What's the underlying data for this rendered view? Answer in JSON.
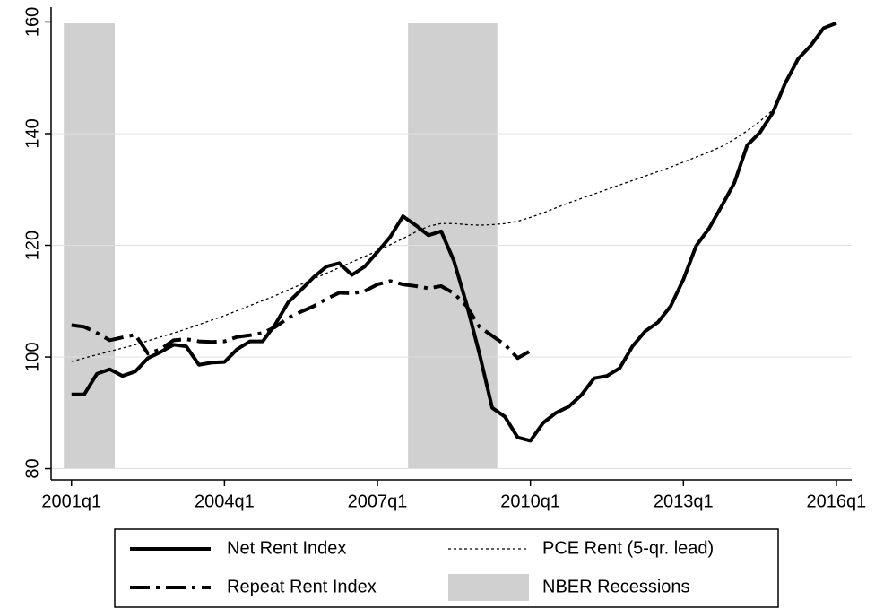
{
  "chart_data": {
    "type": "line",
    "x": [
      2001,
      2001.25,
      2001.5,
      2001.75,
      2002,
      2002.25,
      2002.5,
      2002.75,
      2003,
      2003.25,
      2003.5,
      2003.75,
      2004,
      2004.25,
      2004.5,
      2004.75,
      2005,
      2005.25,
      2005.5,
      2005.75,
      2006,
      2006.25,
      2006.5,
      2006.75,
      2007,
      2007.25,
      2007.5,
      2007.75,
      2008,
      2008.25,
      2008.5,
      2008.75,
      2009,
      2009.25,
      2009.5,
      2009.75,
      2010,
      2010.25,
      2010.5,
      2010.75,
      2011,
      2011.25,
      2011.5,
      2011.75,
      2012,
      2012.25,
      2012.5,
      2012.75,
      2013,
      2013.25,
      2013.5,
      2013.75,
      2014,
      2014.25,
      2014.5,
      2014.75,
      2015,
      2015.25,
      2015.5,
      2015.75,
      2016
    ],
    "series": [
      {
        "name": "Net Rent Index",
        "color": "#000000",
        "style": "solid",
        "width": 4,
        "values": [
          93.3,
          93.3,
          97.0,
          97.8,
          96.6,
          97.4,
          99.8,
          100.9,
          102.2,
          101.9,
          98.6,
          99.0,
          99.1,
          101.4,
          102.8,
          102.8,
          105.9,
          109.8,
          112.0,
          114.3,
          116.2,
          116.8,
          114.7,
          116.2,
          118.8,
          121.5,
          125.2,
          123.6,
          121.8,
          122.5,
          117.2,
          109.4,
          100.6,
          90.9,
          89.3,
          85.6,
          85.0,
          88.2,
          90.0,
          91.1,
          93.2,
          96.2,
          96.6,
          98.0,
          101.9,
          104.6,
          106.2,
          109.1,
          113.9,
          119.9,
          123.0,
          127.0,
          131.2,
          137.9,
          140.2,
          143.7,
          149.1,
          153.4,
          155.8,
          158.9,
          159.8
        ]
      },
      {
        "name": "PCE Rent (5-qr. lead)",
        "color": "#000000",
        "style": "dot",
        "width": 1.3,
        "values": [
          99.2,
          99.8,
          100.4,
          101.0,
          101.6,
          102.2,
          102.9,
          103.6,
          104.3,
          105.0,
          105.8,
          106.6,
          107.4,
          108.3,
          109.2,
          110.1,
          111.0,
          112.0,
          113.0,
          114.0,
          115.0,
          116.0,
          117.0,
          118.0,
          119.0,
          120.1,
          121.2,
          122.4,
          123.4,
          123.9,
          123.9,
          123.7,
          123.6,
          123.7,
          123.9,
          124.3,
          125.0,
          125.8,
          126.7,
          127.6,
          128.4,
          129.2,
          130.0,
          130.8,
          131.6,
          132.4,
          133.2,
          134.0,
          134.9,
          135.8,
          136.7,
          137.7,
          139.0,
          140.5,
          142.2,
          144.2,
          null,
          null,
          null,
          null,
          null
        ]
      },
      {
        "name": "Repeat Rent Index",
        "color": "#000000",
        "style": "dashdot",
        "width": 4,
        "values": [
          105.7,
          105.4,
          104.3,
          103.0,
          103.5,
          104.0,
          100.6,
          101.4,
          103.0,
          103.2,
          102.8,
          102.7,
          102.8,
          103.6,
          103.9,
          104.3,
          105.4,
          107.0,
          108.1,
          109.1,
          110.4,
          111.5,
          111.4,
          111.8,
          113.0,
          113.6,
          113.0,
          112.7,
          112.3,
          112.7,
          111.4,
          109.1,
          105.4,
          103.8,
          102.2,
          99.8,
          101.1,
          null,
          null,
          null,
          null,
          null,
          null,
          null,
          null,
          null,
          null,
          null,
          null,
          null,
          null,
          null,
          null,
          null,
          null,
          null,
          null,
          null,
          null,
          null,
          null
        ]
      }
    ],
    "bands": {
      "name": "NBER Recessions",
      "color": "#d0d0d0",
      "ranges": [
        [
          2000.85,
          2001.85
        ],
        [
          2007.6,
          2009.35
        ]
      ]
    },
    "xlim": [
      2000.6,
      2016.3
    ],
    "xticks": [
      {
        "value": 2001,
        "label": "2001q1"
      },
      {
        "value": 2004,
        "label": "2004q1"
      },
      {
        "value": 2007,
        "label": "2007q1"
      },
      {
        "value": 2010,
        "label": "2010q1"
      },
      {
        "value": 2013,
        "label": "2013q1"
      },
      {
        "value": 2016,
        "label": "2016q1"
      }
    ],
    "ylim": [
      78,
      162
    ],
    "yticks": [
      80,
      100,
      120,
      140,
      160
    ],
    "grid": true
  }
}
